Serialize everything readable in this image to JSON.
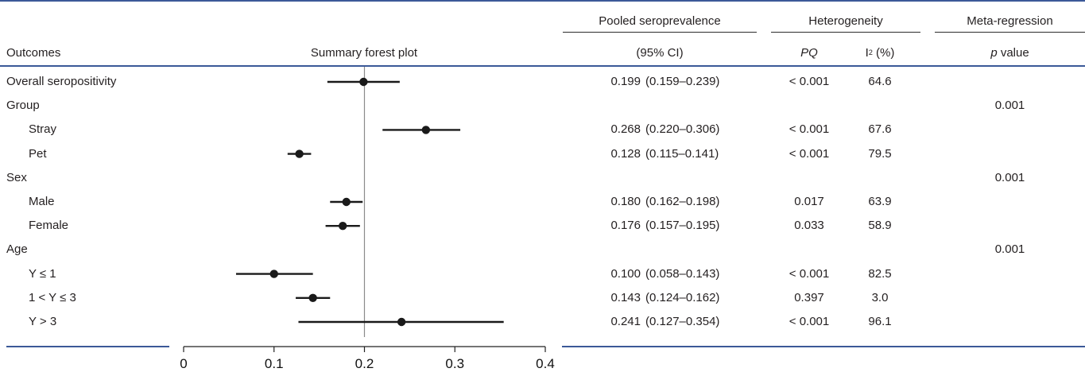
{
  "headers": {
    "outcomes": "Outcomes",
    "plot": "Summary forest plot",
    "pooled_top": "Pooled seroprevalence",
    "pooled_sub": "(95% CI)",
    "heterogeneity": "Heterogeneity",
    "pq": "PQ",
    "i2_base": "I",
    "i2_sup": "2",
    "i2_unit": " (%)",
    "meta_top": "Meta-regression",
    "meta_p": "p",
    "meta_value": " value"
  },
  "rows": [
    {
      "label": "Overall seropositivity",
      "indent": false,
      "est": "0.199",
      "ci": "(0.159–0.239)",
      "pq": "< 0.001",
      "i2": "64.6",
      "p": ""
    },
    {
      "label": "Group",
      "indent": false,
      "est": "",
      "ci": "",
      "pq": "",
      "i2": "",
      "p": "0.001"
    },
    {
      "label": "Stray",
      "indent": true,
      "est": "0.268",
      "ci": "(0.220–0.306)",
      "pq": "< 0.001",
      "i2": "67.6",
      "p": ""
    },
    {
      "label": "Pet",
      "indent": true,
      "est": "0.128",
      "ci": "(0.115–0.141)",
      "pq": "< 0.001",
      "i2": "79.5",
      "p": ""
    },
    {
      "label": "Sex",
      "indent": false,
      "est": "",
      "ci": "",
      "pq": "",
      "i2": "",
      "p": "0.001"
    },
    {
      "label": "Male",
      "indent": true,
      "est": "0.180",
      "ci": "(0.162–0.198)",
      "pq": "0.017",
      "i2": "63.9",
      "p": ""
    },
    {
      "label": "Female",
      "indent": true,
      "est": "0.176",
      "ci": "(0.157–0.195)",
      "pq": "0.033",
      "i2": "58.9",
      "p": ""
    },
    {
      "label": "Age",
      "indent": false,
      "est": "",
      "ci": "",
      "pq": "",
      "i2": "",
      "p": "0.001"
    },
    {
      "label": "Y ≤ 1",
      "indent": true,
      "est": "0.100",
      "ci": "(0.058–0.143)",
      "pq": "< 0.001",
      "i2": "82.5",
      "p": ""
    },
    {
      "label": "1 < Y ≤ 3",
      "indent": true,
      "est": "0.143",
      "ci": "(0.124–0.162)",
      "pq": "0.397",
      "i2": "3.0",
      "p": ""
    },
    {
      "label": "Y > 3",
      "indent": true,
      "est": "0.241",
      "ci": "(0.127–0.354)",
      "pq": "< 0.001",
      "i2": "96.1",
      "p": ""
    }
  ],
  "chart_data": {
    "type": "forest",
    "title": "Summary forest plot",
    "xlim": [
      0,
      0.4
    ],
    "xticks": [
      "0",
      "0.1",
      "0.2",
      "0.3",
      "0.4"
    ],
    "tick_values": [
      0,
      0.1,
      0.2,
      0.3,
      0.4
    ],
    "reference_line": 0.2,
    "points": [
      {
        "row": 0,
        "est": 0.199,
        "low": 0.159,
        "high": 0.239
      },
      {
        "row": 2,
        "est": 0.268,
        "low": 0.22,
        "high": 0.306
      },
      {
        "row": 3,
        "est": 0.128,
        "low": 0.115,
        "high": 0.141
      },
      {
        "row": 5,
        "est": 0.18,
        "low": 0.162,
        "high": 0.198
      },
      {
        "row": 6,
        "est": 0.176,
        "low": 0.157,
        "high": 0.195
      },
      {
        "row": 8,
        "est": 0.1,
        "low": 0.058,
        "high": 0.143
      },
      {
        "row": 9,
        "est": 0.143,
        "low": 0.124,
        "high": 0.162
      },
      {
        "row": 10,
        "est": 0.241,
        "low": 0.127,
        "high": 0.354
      }
    ],
    "marker_color": "#1a1a1a"
  }
}
